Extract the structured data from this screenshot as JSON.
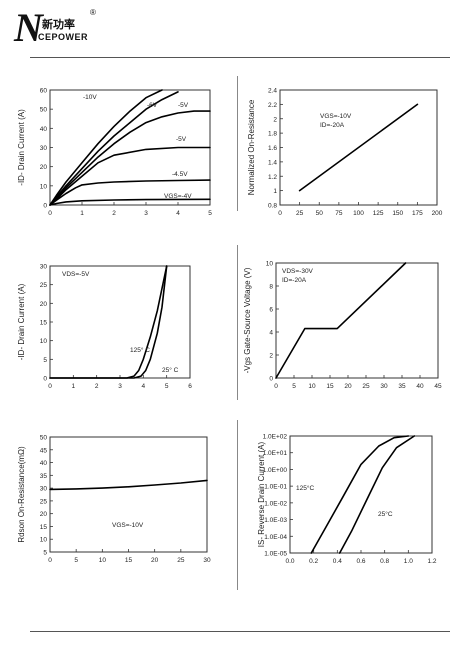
{
  "header": {
    "logo_letter": "N",
    "logo_text_cn": "新功率",
    "logo_text_en": "CEPOWER",
    "registered_mark": "®"
  },
  "chart_data": [
    {
      "id": "output-characteristics",
      "type": "line",
      "xlabel": "",
      "ylabel": "-ID- Drain Current (A)",
      "xlim": [
        0,
        5
      ],
      "ylim": [
        0,
        60
      ],
      "xticks": [
        "0",
        "1",
        "2",
        "3",
        "4",
        "5"
      ],
      "yticks": [
        "0",
        "10",
        "20",
        "30",
        "40",
        "50",
        "60"
      ],
      "grid": false,
      "series": [
        {
          "name": "-10V",
          "x": [
            0,
            0.2,
            0.5,
            1,
            1.5,
            2,
            2.5,
            3,
            3.5
          ],
          "y": [
            0,
            5,
            12,
            22,
            32,
            41,
            49,
            56,
            60
          ]
        },
        {
          "name": "-6V",
          "x": [
            0,
            0.2,
            0.5,
            1,
            1.5,
            2,
            2.5,
            3,
            3.5,
            4
          ],
          "y": [
            0,
            4,
            10,
            19,
            28,
            36,
            43,
            50,
            55,
            59
          ]
        },
        {
          "name": "-5V",
          "x": [
            0,
            0.2,
            0.5,
            1,
            1.5,
            2,
            2.5,
            3,
            3.5,
            4,
            4.5,
            5
          ],
          "y": [
            0,
            3,
            9,
            17,
            25,
            32,
            38,
            43,
            46,
            48,
            49,
            49
          ]
        },
        {
          "name": "-5V",
          "x": [
            0,
            0.2,
            0.5,
            1,
            1.5,
            2,
            3,
            4,
            5
          ],
          "y": [
            0,
            3,
            8,
            15,
            22,
            26,
            29,
            30,
            30
          ]
        },
        {
          "name": "-4.5V",
          "x": [
            0,
            0.2,
            0.5,
            0.8,
            1,
            1.5,
            2,
            3,
            4,
            5
          ],
          "y": [
            0,
            2.5,
            6,
            9,
            10.5,
            11.5,
            12,
            12.5,
            12.8,
            13
          ]
        },
        {
          "name": "VGS=-4V",
          "x": [
            0,
            0.2,
            0.5,
            1,
            2,
            3,
            4,
            5
          ],
          "y": [
            0,
            0.8,
            1.6,
            2.2,
            2.6,
            2.8,
            2.9,
            3
          ]
        }
      ],
      "annotations": [
        "-10V",
        "-6V",
        "-5V",
        "-5V",
        "-4.5V",
        "VGS=-4V"
      ]
    },
    {
      "id": "normalized-on-resistance",
      "type": "line",
      "xlabel": "",
      "ylabel": "Normalized On-Resistance",
      "xlim": [
        0,
        200
      ],
      "ylim": [
        0.8,
        2.4
      ],
      "xticks": [
        "0",
        "25",
        "50",
        "75",
        "100",
        "125",
        "150",
        "175",
        "200"
      ],
      "yticks": [
        "0.8",
        "1",
        "1.2",
        "1.4",
        "1.6",
        "1.8",
        "2",
        "2.2",
        "2.4"
      ],
      "grid": false,
      "series": [
        {
          "x": [
            25,
            175
          ],
          "y": [
            1.0,
            2.2
          ]
        }
      ],
      "annotations": [
        "VGS=-10V",
        "ID=-20A"
      ]
    },
    {
      "id": "transfer-characteristics",
      "type": "line",
      "xlabel": "",
      "ylabel": "-ID- Drain Current (A)",
      "xlim": [
        0,
        6
      ],
      "ylim": [
        0,
        30
      ],
      "xticks": [
        "0",
        "1",
        "2",
        "3",
        "4",
        "5",
        "6"
      ],
      "yticks": [
        "0",
        "5",
        "10",
        "15",
        "20",
        "25",
        "30"
      ],
      "grid": false,
      "series": [
        {
          "name": "125°C",
          "x": [
            0,
            3.3,
            3.6,
            3.8,
            4.0,
            4.3,
            4.6,
            5.0
          ],
          "y": [
            0,
            0,
            0.5,
            2,
            5,
            11,
            18,
            30
          ]
        },
        {
          "name": "25°C",
          "x": [
            0,
            3.6,
            3.9,
            4.1,
            4.3,
            4.6,
            4.8,
            5.0
          ],
          "y": [
            0,
            0,
            0.5,
            2,
            5,
            12,
            19,
            30
          ]
        }
      ],
      "annotations": [
        "VDS=-5V",
        "125° C",
        "25° C"
      ]
    },
    {
      "id": "gate-charge",
      "type": "line",
      "xlabel": "",
      "ylabel": "-Vgs Gate-Source Voltage (V)",
      "xlim": [
        0,
        45
      ],
      "ylim": [
        0,
        10
      ],
      "xticks": [
        "0",
        "5",
        "10",
        "15",
        "20",
        "25",
        "30",
        "35",
        "40",
        "45"
      ],
      "yticks": [
        "0",
        "2",
        "4",
        "6",
        "8",
        "10"
      ],
      "grid": false,
      "series": [
        {
          "x": [
            0,
            8,
            17,
            36
          ],
          "y": [
            0,
            4.3,
            4.3,
            10
          ]
        }
      ],
      "annotations": [
        "VDS=-30V",
        "ID=-20A"
      ]
    },
    {
      "id": "rdson-vs-current",
      "type": "line",
      "xlabel": "",
      "ylabel": "Rdson On-Resistance(mΩ)",
      "xlim": [
        0,
        30
      ],
      "ylim": [
        5,
        50
      ],
      "xticks": [
        "0",
        "5",
        "10",
        "15",
        "20",
        "25",
        "30"
      ],
      "yticks": [
        "5",
        "10",
        "15",
        "20",
        "25",
        "30",
        "35",
        "40",
        "45",
        "50"
      ],
      "grid": false,
      "series": [
        {
          "x": [
            0,
            5,
            10,
            15,
            20,
            25,
            30
          ],
          "y": [
            29.5,
            29.7,
            30,
            30.5,
            31.2,
            32,
            33
          ]
        }
      ],
      "annotations": [
        "VGS=-10V"
      ]
    },
    {
      "id": "body-diode-characteristics",
      "type": "line",
      "xlabel": "",
      "ylabel": "IS- Reverse Drain Current (A)",
      "xlim": [
        0,
        1.2
      ],
      "ylim": [
        -5,
        2
      ],
      "log_y": true,
      "xticks": [
        "0.0",
        "0.2",
        "0.4",
        "0.6",
        "0.8",
        "1.0",
        "1.2"
      ],
      "yticks": [
        "1.0E-05",
        "1.0E-04",
        "1.0E-03",
        "1.0E-02",
        "1.0E-01",
        "1.0E+00",
        "1.0E+01",
        "1.0E+02"
      ],
      "grid": false,
      "series": [
        {
          "name": "125°C",
          "x": [
            0.18,
            0.3,
            0.45,
            0.6,
            0.75,
            0.88,
            1.0
          ],
          "y": [
            -5,
            -3.5,
            -1.6,
            0.3,
            1.4,
            1.9,
            2.0
          ]
        },
        {
          "name": "25°C",
          "x": [
            0.42,
            0.52,
            0.65,
            0.78,
            0.9,
            1.05
          ],
          "y": [
            -5,
            -3.7,
            -1.8,
            0.1,
            1.3,
            2.0
          ]
        }
      ],
      "annotations": [
        "125°C",
        "25°C"
      ]
    }
  ]
}
